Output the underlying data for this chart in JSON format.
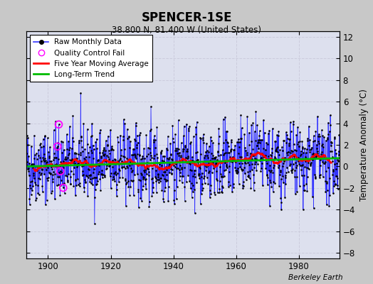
{
  "title": "SPENCER-1SE",
  "subtitle": "38.800 N, 81.400 W (United States)",
  "ylabel": "Temperature Anomaly (°C)",
  "watermark": "Berkeley Earth",
  "xlim": [
    1893,
    1993
  ],
  "ylim": [
    -8.5,
    12.5
  ],
  "yticks": [
    -8,
    -6,
    -4,
    -2,
    0,
    2,
    4,
    6,
    8,
    10,
    12
  ],
  "xticks": [
    1900,
    1920,
    1940,
    1960,
    1980
  ],
  "start_year": 1893,
  "end_year": 1992,
  "seed": 42,
  "raw_color": "#3333ff",
  "dot_color": "#000000",
  "ma_color": "#ff0000",
  "trend_color": "#00bb00",
  "qc_color": "#ff00ff",
  "bg_color": "#dde0ee",
  "grid_color": "#ccccdd",
  "fig_bg": "#c8c8c8",
  "noise_scale": 2.2,
  "ma_window": 60,
  "qc_indices": [
    120,
    125,
    131,
    142
  ]
}
